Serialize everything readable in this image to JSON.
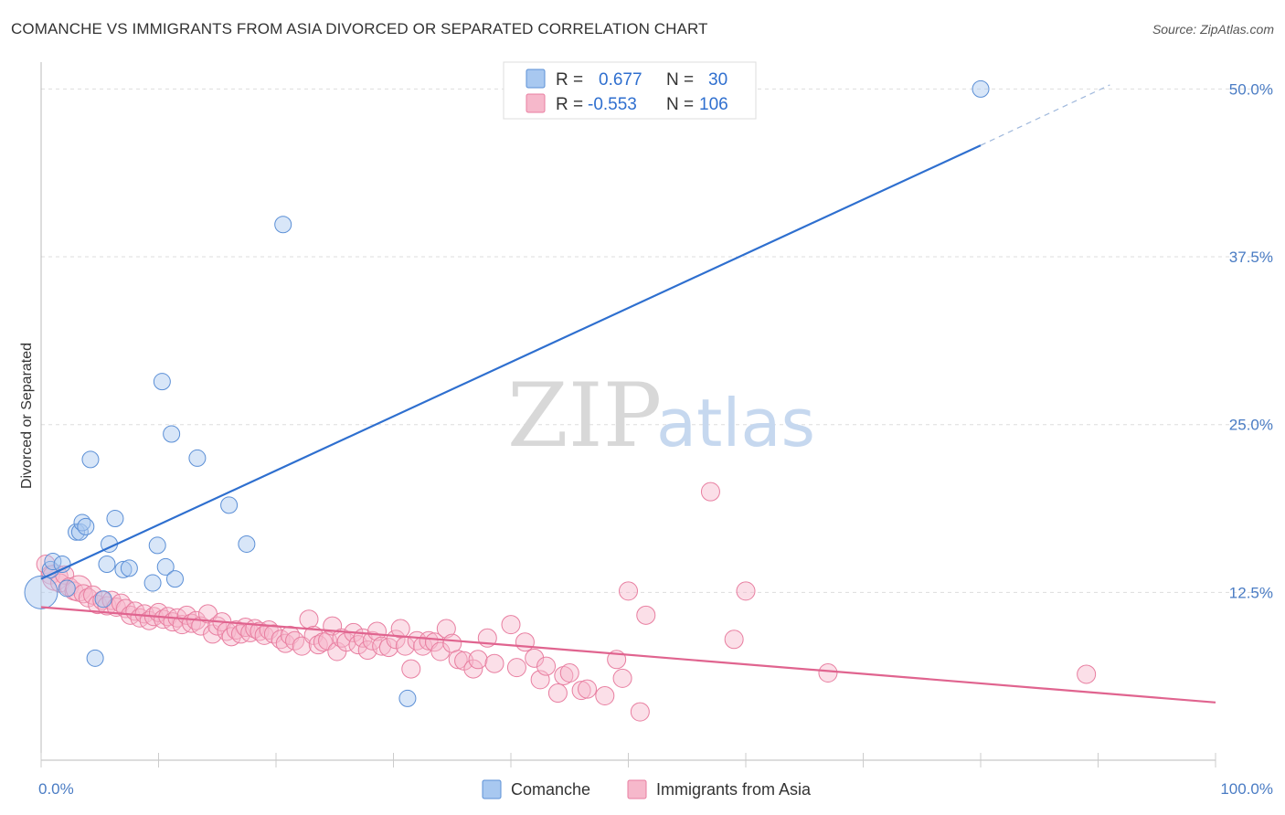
{
  "header": {
    "title": "COMANCHE VS IMMIGRANTS FROM ASIA DIVORCED OR SEPARATED CORRELATION CHART",
    "source": "Source: ZipAtlas.com"
  },
  "watermark": {
    "zip": "ZIP",
    "atlas": "atlas"
  },
  "colors": {
    "blue_fill": "#a8c8f0",
    "blue_stroke": "#5b8fd6",
    "blue_line": "#2e6fcf",
    "pink_fill": "#f6b8cb",
    "pink_stroke": "#e87ea0",
    "pink_line": "#e0648f",
    "tick_text": "#4a7cc4"
  },
  "legend": {
    "rows": [
      {
        "r_label": "R =",
        "r_value": "0.677",
        "n_label": "N =",
        "n_value": "30"
      },
      {
        "r_label": "R =",
        "r_value": "-0.553",
        "n_label": "N =",
        "n_value": "106"
      }
    ]
  },
  "chart_data": {
    "type": "scatter",
    "title": "COMANCHE VS IMMIGRANTS FROM ASIA DIVORCED OR SEPARATED CORRELATION CHART",
    "xlabel": "",
    "ylabel": "Divorced or Separated",
    "xlim": [
      0,
      100
    ],
    "ylim": [
      0,
      52
    ],
    "x_tick_labels": [
      "0.0%",
      "100.0%"
    ],
    "y_ticks": [
      12.5,
      25.0,
      37.5,
      50.0
    ],
    "y_tick_labels": [
      "12.5%",
      "25.0%",
      "37.5%",
      "50.0%"
    ],
    "grid": true,
    "legend_position": "top-center",
    "series": [
      {
        "name": "Comanche",
        "color": "#a8c8f0",
        "trend": {
          "x": [
            0,
            80,
            91
          ],
          "y": [
            13.5,
            45.8,
            50.3
          ],
          "dashed_from_x": 80
        },
        "points": [
          [
            0.0,
            12.5,
            18
          ],
          [
            0.8,
            14.2,
            9
          ],
          [
            1.0,
            14.8,
            9
          ],
          [
            1.8,
            14.6,
            9
          ],
          [
            2.2,
            12.8,
            9
          ],
          [
            3.0,
            17.0,
            9
          ],
          [
            3.3,
            17.0,
            9
          ],
          [
            3.5,
            17.7,
            9
          ],
          [
            3.8,
            17.4,
            9
          ],
          [
            4.2,
            22.4,
            9
          ],
          [
            4.6,
            7.6,
            9
          ],
          [
            5.3,
            12.0,
            9
          ],
          [
            5.6,
            14.6,
            9
          ],
          [
            5.8,
            16.1,
            9
          ],
          [
            6.3,
            18.0,
            9
          ],
          [
            7.0,
            14.2,
            9
          ],
          [
            7.5,
            14.3,
            9
          ],
          [
            9.5,
            13.2,
            9
          ],
          [
            9.9,
            16.0,
            9
          ],
          [
            10.3,
            28.2,
            9
          ],
          [
            10.6,
            14.4,
            9
          ],
          [
            11.1,
            24.3,
            9
          ],
          [
            11.4,
            13.5,
            9
          ],
          [
            13.3,
            22.5,
            9
          ],
          [
            16.0,
            19.0,
            9
          ],
          [
            17.5,
            16.1,
            9
          ],
          [
            20.6,
            39.9,
            9
          ],
          [
            31.2,
            4.6,
            9
          ],
          [
            80.0,
            50.0,
            9
          ]
        ]
      },
      {
        "name": "Immigrants from Asia",
        "color": "#f6b8cb",
        "trend": {
          "x": [
            0,
            100
          ],
          "y": [
            11.4,
            4.3
          ]
        },
        "points": [
          [
            0.4,
            14.6,
            10
          ],
          [
            0.8,
            13.8,
            10
          ],
          [
            1.2,
            13.6,
            14
          ],
          [
            1.6,
            13.2,
            10
          ],
          [
            2.0,
            13.8,
            10
          ],
          [
            2.4,
            12.9,
            10
          ],
          [
            2.8,
            12.6,
            10
          ],
          [
            3.2,
            12.8,
            14
          ],
          [
            3.6,
            12.4,
            10
          ],
          [
            4.0,
            12.1,
            10
          ],
          [
            4.4,
            12.3,
            10
          ],
          [
            4.8,
            11.6,
            10
          ],
          [
            5.2,
            11.9,
            10
          ],
          [
            5.6,
            11.5,
            10
          ],
          [
            6.0,
            11.9,
            10
          ],
          [
            6.4,
            11.4,
            10
          ],
          [
            6.8,
            11.7,
            10
          ],
          [
            7.2,
            11.3,
            10
          ],
          [
            7.6,
            10.8,
            10
          ],
          [
            8.0,
            11.1,
            10
          ],
          [
            8.4,
            10.6,
            10
          ],
          [
            8.8,
            10.9,
            10
          ],
          [
            9.2,
            10.4,
            10
          ],
          [
            9.6,
            10.7,
            10
          ],
          [
            10.0,
            11.0,
            10
          ],
          [
            10.4,
            10.5,
            10
          ],
          [
            10.8,
            10.7,
            10
          ],
          [
            11.2,
            10.3,
            10
          ],
          [
            11.6,
            10.6,
            10
          ],
          [
            12.0,
            10.1,
            10
          ],
          [
            12.4,
            10.8,
            10
          ],
          [
            12.8,
            10.2,
            10
          ],
          [
            13.2,
            10.4,
            10
          ],
          [
            13.6,
            10.0,
            10
          ],
          [
            14.2,
            10.9,
            10
          ],
          [
            14.6,
            9.4,
            10
          ],
          [
            15.0,
            10.0,
            10
          ],
          [
            15.4,
            10.3,
            10
          ],
          [
            15.8,
            9.6,
            10
          ],
          [
            16.2,
            9.2,
            10
          ],
          [
            16.6,
            9.7,
            10
          ],
          [
            17.0,
            9.4,
            10
          ],
          [
            17.4,
            9.9,
            10
          ],
          [
            17.8,
            9.5,
            10
          ],
          [
            18.2,
            9.8,
            10
          ],
          [
            18.6,
            9.6,
            10
          ],
          [
            19.0,
            9.3,
            10
          ],
          [
            19.4,
            9.7,
            10
          ],
          [
            19.8,
            9.4,
            10
          ],
          [
            20.4,
            9.0,
            10
          ],
          [
            20.8,
            8.7,
            10
          ],
          [
            21.2,
            9.3,
            10
          ],
          [
            21.6,
            8.9,
            10
          ],
          [
            22.2,
            8.5,
            10
          ],
          [
            22.8,
            10.5,
            10
          ],
          [
            23.2,
            9.3,
            10
          ],
          [
            23.6,
            8.6,
            10
          ],
          [
            24.0,
            8.8,
            10
          ],
          [
            24.4,
            8.9,
            10
          ],
          [
            24.8,
            10.0,
            10
          ],
          [
            25.2,
            8.1,
            10
          ],
          [
            25.6,
            9.1,
            10
          ],
          [
            26.0,
            8.8,
            10
          ],
          [
            26.6,
            9.5,
            10
          ],
          [
            27.0,
            8.6,
            10
          ],
          [
            27.4,
            9.1,
            10
          ],
          [
            27.8,
            8.2,
            10
          ],
          [
            28.2,
            8.9,
            10
          ],
          [
            28.6,
            9.6,
            10
          ],
          [
            29.0,
            8.5,
            10
          ],
          [
            29.6,
            8.4,
            10
          ],
          [
            30.2,
            9.0,
            10
          ],
          [
            30.6,
            9.8,
            10
          ],
          [
            31.0,
            8.5,
            10
          ],
          [
            31.5,
            6.8,
            10
          ],
          [
            32.0,
            8.9,
            10
          ],
          [
            32.5,
            8.5,
            10
          ],
          [
            33.0,
            8.9,
            10
          ],
          [
            33.5,
            8.8,
            10
          ],
          [
            34.0,
            8.1,
            10
          ],
          [
            34.5,
            9.8,
            10
          ],
          [
            35.0,
            8.7,
            10
          ],
          [
            35.5,
            7.5,
            10
          ],
          [
            36.0,
            7.4,
            10
          ],
          [
            36.8,
            6.8,
            10
          ],
          [
            37.2,
            7.5,
            10
          ],
          [
            38.0,
            9.1,
            10
          ],
          [
            38.6,
            7.2,
            10
          ],
          [
            40.0,
            10.1,
            10
          ],
          [
            40.5,
            6.9,
            10
          ],
          [
            41.2,
            8.8,
            10
          ],
          [
            42.0,
            7.6,
            10
          ],
          [
            42.5,
            6.0,
            10
          ],
          [
            43.0,
            7.0,
            10
          ],
          [
            44.0,
            5.0,
            10
          ],
          [
            44.5,
            6.3,
            10
          ],
          [
            45.0,
            6.5,
            10
          ],
          [
            46.0,
            5.2,
            10
          ],
          [
            46.5,
            5.3,
            10
          ],
          [
            48.0,
            4.8,
            10
          ],
          [
            49.0,
            7.5,
            10
          ],
          [
            49.5,
            6.1,
            10
          ],
          [
            50.0,
            12.6,
            10
          ],
          [
            51.0,
            3.6,
            10
          ],
          [
            51.5,
            10.8,
            10
          ],
          [
            57.0,
            20.0,
            10
          ],
          [
            59.0,
            9.0,
            10
          ],
          [
            60.0,
            12.6,
            10
          ],
          [
            67.0,
            6.5,
            10
          ],
          [
            89.0,
            6.4,
            10
          ]
        ]
      }
    ]
  }
}
